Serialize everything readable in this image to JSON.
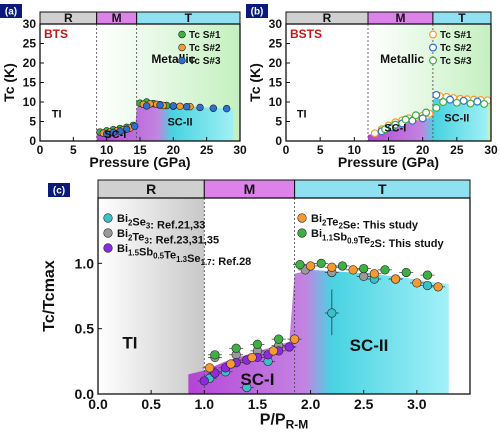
{
  "chart_data": [
    {
      "panel_label": "(a)",
      "type": "scatter",
      "material": "BTS",
      "xlabel": "Pressure (GPa)",
      "ylabel": "Tc (K)",
      "xlim": [
        0,
        30
      ],
      "ylim": [
        0,
        30
      ],
      "xticks": [
        "0",
        "5",
        "10",
        "15",
        "20",
        "25",
        "30"
      ],
      "yticks": [
        "0",
        "5",
        "10",
        "15",
        "20",
        "25",
        "30"
      ],
      "phase_bar": [
        {
          "label": "R",
          "from": 0,
          "to": 8.5,
          "color": "#d0d0d0"
        },
        {
          "label": "M",
          "from": 8.5,
          "to": 14.5,
          "color": "#dc82e8"
        },
        {
          "label": "T",
          "from": 14.5,
          "to": 30,
          "color": "#8fe0f0"
        }
      ],
      "region_labels": [
        {
          "text": "TI",
          "x": 2.5,
          "y": 6
        },
        {
          "text": "Metallic",
          "x": 20,
          "y": 20
        },
        {
          "text": "SC-I",
          "x": 11.3,
          "y": 0.8
        },
        {
          "text": "SC-II",
          "x": 21,
          "y": 4
        }
      ],
      "legend": [
        {
          "label": "Tc S#1",
          "color": "#3cb043"
        },
        {
          "label": "Tc S#2",
          "color": "#f59a30"
        },
        {
          "label": "Tc S#3",
          "color": "#2f6fd0"
        }
      ],
      "series": [
        {
          "name": "Tc S#1",
          "color": "#3cb043",
          "x": [
            9,
            10,
            11,
            12,
            13,
            14,
            15,
            16,
            17,
            18,
            19,
            20
          ],
          "y": [
            2.3,
            2.6,
            2.9,
            3.2,
            3.5,
            4.0,
            9.7,
            10.0,
            9.6,
            9.3,
            9.1,
            9.0
          ]
        },
        {
          "name": "Tc S#2",
          "color": "#f59a30",
          "x": [
            9.5,
            10.5,
            11.5,
            12.5,
            13.5,
            15.5,
            16.5,
            17.5,
            18.5,
            20,
            21,
            22.5
          ],
          "y": [
            2.0,
            2.3,
            2.6,
            2.9,
            3.3,
            9.4,
            9.5,
            9.4,
            9.1,
            8.9,
            8.9,
            8.8
          ]
        },
        {
          "name": "Tc S#3",
          "color": "#2f6fd0",
          "x": [
            10,
            11,
            12,
            13,
            14.2,
            16,
            18,
            20,
            22,
            24,
            26,
            28
          ],
          "y": [
            1.8,
            2.2,
            2.5,
            3.0,
            3.8,
            9.0,
            9.2,
            9.0,
            8.8,
            8.6,
            8.4,
            8.3
          ]
        }
      ],
      "sc_boundary": {
        "x": [
          8.5,
          10,
          12,
          14.3,
          14.5,
          15,
          16,
          18,
          20,
          22,
          24,
          26,
          28,
          29
        ],
        "y": [
          1.8,
          2.1,
          2.7,
          3.6,
          8.5,
          9.5,
          9.6,
          9.3,
          9.1,
          8.9,
          8.7,
          8.5,
          8.3,
          8.3
        ]
      },
      "metal_start": 8.5
    },
    {
      "panel_label": "(b)",
      "type": "scatter",
      "material": "BSTS",
      "xlabel": "Pressure (GPa)",
      "ylabel": "Tc (K)",
      "xlim": [
        0,
        30
      ],
      "ylim": [
        0,
        30
      ],
      "xticks": [
        "0",
        "5",
        "10",
        "15",
        "20",
        "25",
        "30"
      ],
      "yticks": [
        "0",
        "5",
        "10",
        "15",
        "20",
        "25",
        "30"
      ],
      "phase_bar": [
        {
          "label": "R",
          "from": 0,
          "to": 12,
          "color": "#d0d0d0"
        },
        {
          "label": "M",
          "from": 12,
          "to": 21.5,
          "color": "#dc82e8"
        },
        {
          "label": "T",
          "from": 21.5,
          "to": 30,
          "color": "#8fe0f0"
        }
      ],
      "region_labels": [
        {
          "text": "TI",
          "x": 2.3,
          "y": 6
        },
        {
          "text": "Metallic",
          "x": 17,
          "y": 20
        },
        {
          "text": "SC-I",
          "x": 16,
          "y": 2.5
        },
        {
          "text": "SC-II",
          "x": 25,
          "y": 5
        }
      ],
      "legend": [
        {
          "label": "Tc S#1",
          "color": "#f59a30"
        },
        {
          "label": "Tc S#2",
          "color": "#2f6fd0"
        },
        {
          "label": "Tc S#3",
          "color": "#3cb043"
        }
      ],
      "series": [
        {
          "name": "Tc S#1",
          "color": "#f59a30",
          "x": [
            13,
            14,
            15,
            16,
            17,
            18,
            19,
            20,
            21,
            22.5,
            23.5,
            24.5,
            25.5,
            26.5,
            27.5,
            28.5,
            29.5
          ],
          "y": [
            2.0,
            3.0,
            4.0,
            4.8,
            5.3,
            5.8,
            6.1,
            6.5,
            7.0,
            11.5,
            11.3,
            11.0,
            10.8,
            10.7,
            10.6,
            10.5,
            10.4
          ]
        },
        {
          "name": "Tc S#2",
          "color": "#2f6fd0",
          "x": [
            14,
            15.5,
            17,
            18.5,
            20,
            22,
            24,
            26,
            28
          ],
          "y": [
            2.5,
            3.5,
            4.5,
            5.2,
            5.8,
            11.8,
            10.6,
            10.3,
            10.1
          ]
        },
        {
          "name": "Tc S#3",
          "color": "#3cb043",
          "x": [
            14.5,
            16,
            17.5,
            19,
            20.5,
            22,
            23,
            25,
            27,
            29
          ],
          "y": [
            3.0,
            4.2,
            5.5,
            6.6,
            7.3,
            8.5,
            10.0,
            9.8,
            9.6,
            9.5
          ]
        }
      ],
      "sc_boundary": {
        "x": [
          12,
          14,
          16,
          18,
          20,
          21.3,
          21.5,
          22,
          24,
          26,
          28,
          29.5
        ],
        "y": [
          1.5,
          2.7,
          3.9,
          4.8,
          5.5,
          6.0,
          10.5,
          11.0,
          10.5,
          10.3,
          10.1,
          10.0
        ]
      },
      "metal_start": 12
    },
    {
      "panel_label": "(c)",
      "type": "scatter",
      "xlabel": "P/P",
      "xlabel_sub": "R-M",
      "ylabel": "Tc/Tcmax",
      "xlim": [
        0,
        3.5
      ],
      "ylim": [
        0,
        1.5
      ],
      "xticks": [
        "0.0",
        "0.5",
        "1.0",
        "1.5",
        "2.0",
        "2.5",
        "3.0"
      ],
      "yticks": [
        "0.0",
        "0.5",
        "1.0"
      ],
      "phase_bar": [
        {
          "label": "R",
          "from": 0,
          "to": 1.0,
          "color": "#d0d0d0"
        },
        {
          "label": "M",
          "from": 1.0,
          "to": 1.85,
          "color": "#dc82e8"
        },
        {
          "label": "T",
          "from": 1.85,
          "to": 3.5,
          "color": "#8fe0f0"
        }
      ],
      "region_labels": [
        {
          "text": "TI",
          "x": 0.3,
          "y": 0.35
        },
        {
          "text": "SC-I",
          "x": 1.5,
          "y": 0.07
        },
        {
          "text": "SC-II",
          "x": 2.55,
          "y": 0.33
        }
      ],
      "legend": [
        {
          "label": "Bi2Se3: Ref.21,33",
          "color": "#3cc0c8"
        },
        {
          "label": "Bi2Te3: Ref.23,31,35",
          "color": "#9a9a9a"
        },
        {
          "label": "Bi1.5Sb0.5Te1.3Se1.7: Ref.28",
          "color": "#8a2be2"
        },
        {
          "label": "Bi2Te2Se: This study",
          "color": "#f59a30"
        },
        {
          "label": "Bi1.1Sb0.9Te2S: This study",
          "color": "#3cb043"
        }
      ],
      "series": [
        {
          "name": "Bi2Se3: Ref.21,33",
          "color": "#3cc0c8",
          "x": [
            1.05,
            1.2,
            1.4,
            1.6,
            2.2,
            2.6,
            3.1
          ],
          "y": [
            0.12,
            0.17,
            0.05,
            0.25,
            0.62,
            0.88,
            0.83
          ]
        },
        {
          "name": "Bi2Te3: Ref.23,31,35",
          "color": "#9a9a9a",
          "x": [
            1.1,
            1.3,
            1.5,
            1.7,
            1.95,
            2.2,
            2.5,
            2.8
          ],
          "y": [
            0.28,
            0.3,
            0.33,
            0.37,
            0.95,
            0.93,
            0.9,
            0.88
          ]
        },
        {
          "name": "Bi1.5Sb0.5Te1.3Se1.7: Ref.28",
          "color": "#8a2be2",
          "x": [
            1.0,
            1.1,
            1.2,
            1.3,
            1.4,
            1.5,
            1.6,
            1.7,
            1.8
          ],
          "y": [
            0.1,
            0.16,
            0.2,
            0.24,
            0.26,
            0.28,
            0.3,
            0.33,
            0.36
          ]
        },
        {
          "name": "Bi2Te2Se: This study",
          "color": "#f59a30",
          "x": [
            1.05,
            1.25,
            1.45,
            1.65,
            1.85,
            2.0,
            2.2,
            2.4,
            2.6,
            2.8,
            3.0,
            3.2
          ],
          "y": [
            0.2,
            0.23,
            0.28,
            0.33,
            0.42,
            0.98,
            0.97,
            0.95,
            0.92,
            0.88,
            0.85,
            0.82
          ]
        },
        {
          "name": "Bi1.1Sb0.9Te2S: This study",
          "color": "#3cb043",
          "x": [
            1.1,
            1.3,
            1.5,
            1.7,
            1.9,
            2.1,
            2.3,
            2.5,
            2.7,
            2.9,
            3.1
          ],
          "y": [
            0.3,
            0.35,
            0.38,
            0.42,
            0.99,
            1.0,
            0.98,
            0.96,
            0.95,
            0.93,
            0.91
          ]
        }
      ],
      "sc_boundary": {
        "x": [
          0.85,
          1.0,
          1.2,
          1.4,
          1.6,
          1.8,
          1.85,
          2.0,
          2.4,
          2.8,
          3.2,
          3.3
        ],
        "y": [
          0.15,
          0.18,
          0.25,
          0.3,
          0.35,
          0.4,
          0.92,
          0.95,
          0.93,
          0.9,
          0.85,
          0.84
        ]
      },
      "metal_start": 0.85
    }
  ]
}
